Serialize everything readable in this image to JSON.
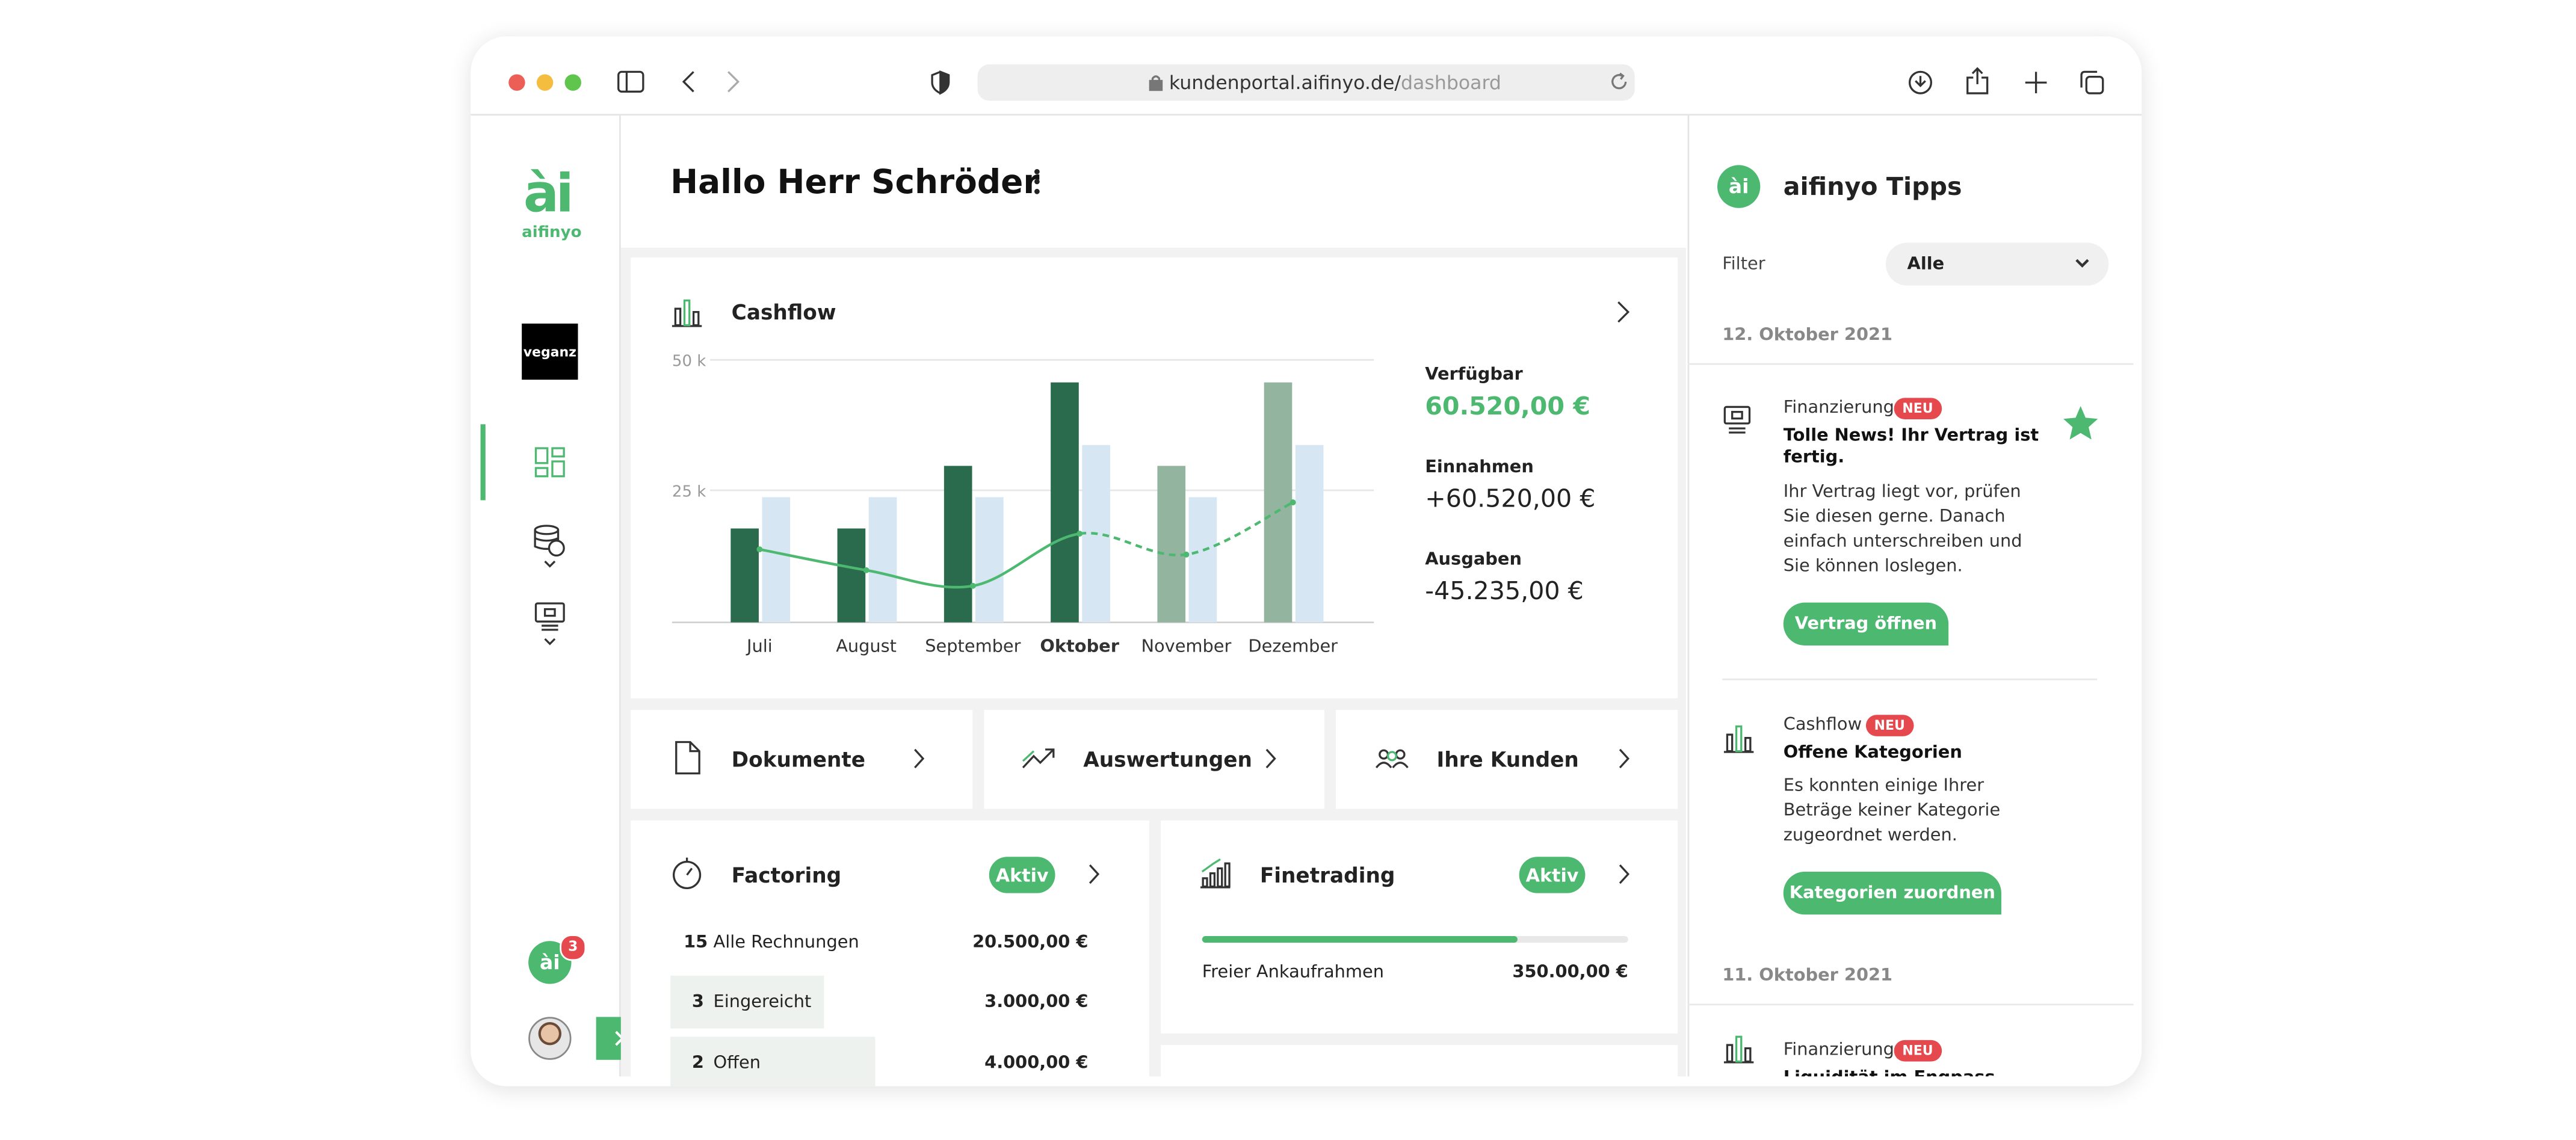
{
  "browser": {
    "url_host": "kundenportal.aifinyo.de/",
    "url_path": "dashboard"
  },
  "sidebar": {
    "logo_text": "aifinyo",
    "brand": "veganz",
    "notification_count": 3
  },
  "header": {
    "greeting": "Hallo Herr Schröder"
  },
  "cashflow": {
    "title": "Cashflow",
    "chart_data": {
      "type": "bar",
      "categories": [
        "Juli",
        "August",
        "September",
        "Oktober",
        "November",
        "Dezember"
      ],
      "bold_category": 3,
      "ylim": [
        0,
        50000
      ],
      "yticks": [
        {
          "value": 25000,
          "label": "25 k"
        },
        {
          "value": 50000,
          "label": "50 k"
        }
      ],
      "grid": true,
      "series": [
        {
          "colors": [
            "#2b6b4d",
            "#2b6b4d",
            "#2b6b4d",
            "#2b6b4d",
            "#93b59f",
            "#93b59f"
          ],
          "values": [
            18000,
            18000,
            30000,
            46000,
            30000,
            46000
          ]
        },
        {
          "color": "#d6e7f3",
          "values": [
            24000,
            24000,
            24000,
            34000,
            24000,
            34000
          ]
        },
        {
          "type": "line",
          "color": "#4cb870",
          "dashed_from": 3,
          "values": [
            14000,
            10000,
            7000,
            17000,
            13000,
            23000
          ]
        }
      ]
    },
    "stats": [
      {
        "label": "Verfügbar",
        "value": "60.520,00 €"
      },
      {
        "label": "Einnahmen",
        "value": "+60.520,00 €"
      },
      {
        "label": "Ausgaben",
        "value": "-45.235,00 €"
      }
    ]
  },
  "tiles": [
    "Dokumente",
    "Auswertungen",
    "Ihre Kunden"
  ],
  "factoring": {
    "title": "Factoring",
    "status": "Aktiv",
    "rows": [
      {
        "count": 15,
        "label": "Alle Rechnungen",
        "amount": "20.500,00 €"
      },
      {
        "count": 3,
        "label": "Eingereicht",
        "amount": "3.000,00 €"
      },
      {
        "count": 2,
        "label": "Offen",
        "amount": "4.000,00 €"
      }
    ]
  },
  "finetrading": {
    "title": "Finetrading",
    "status": "Aktiv",
    "progress": 74,
    "progress_label": "Freier Ankaufrahmen",
    "amount": "350.00,00 €"
  },
  "tips": {
    "title": "aifinyo Tipps",
    "filter_label": "Filter",
    "filter_value": "Alle",
    "groups": [
      {
        "date": "12. Oktober 2021",
        "items": [
          {
            "category": "Finanzierung",
            "badge": "NEU",
            "title": "Tolle News! Ihr Vertrag ist fertig.",
            "text": "Ihr Vertrag liegt vor, prüfen Sie diesen gerne. Danach einfach unterschreiben und Sie können loslegen.",
            "button": "Vertrag öffnen"
          },
          {
            "category": "Cashflow",
            "badge": "NEU",
            "title": "Offene Kategorien",
            "text": "Es konnten einige Ihrer Beträge keiner Kategorie zugeordnet werden.",
            "button": "Kategorien zuordnen"
          }
        ]
      },
      {
        "date": "11. Oktober 2021",
        "items": [
          {
            "category": "Finanzierung",
            "badge": "NEU",
            "title": "Liquidität im Engpass"
          }
        ]
      }
    ]
  }
}
